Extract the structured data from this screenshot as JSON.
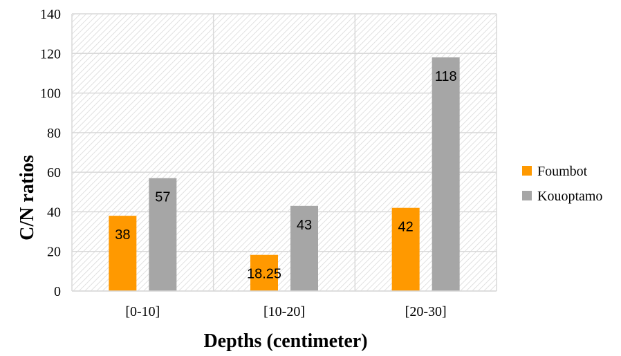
{
  "chart_data": {
    "type": "bar",
    "xlabel": "Depths (centimeter)",
    "ylabel": "C/N ratios",
    "categories": [
      "[0-10]",
      "[10-20]",
      "[20-30]"
    ],
    "series": [
      {
        "name": "Foumbot",
        "values": [
          38,
          18.25,
          42
        ],
        "labels": [
          "38",
          "18.25",
          "42"
        ],
        "color": "#ff9900"
      },
      {
        "name": "Kouoptamo",
        "values": [
          57,
          43,
          118
        ],
        "labels": [
          "57",
          "43",
          "118"
        ],
        "color": "#a6a6a6"
      }
    ],
    "ylim": [
      0,
      140
    ],
    "yticks": [
      0,
      20,
      40,
      60,
      80,
      100,
      120,
      140
    ],
    "grid": true,
    "background_pattern": "diagonal-hatch",
    "legend_position": "right"
  }
}
